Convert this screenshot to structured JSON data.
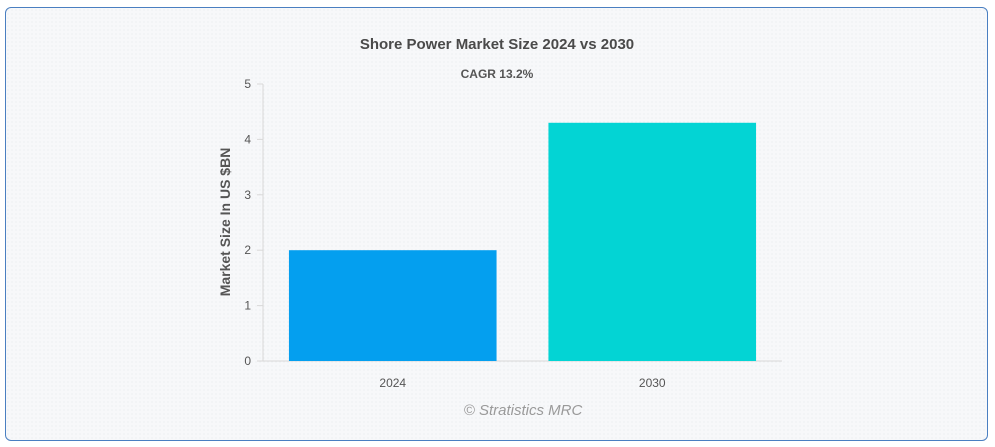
{
  "chart_data": {
    "type": "bar",
    "title": "Shore Power Market Size 2024 vs 2030",
    "subtitle": "CAGR 13.2%",
    "xlabel": "",
    "ylabel": "Market Size In US $BN",
    "categories": [
      "2024",
      "2030"
    ],
    "values": [
      2.0,
      4.3
    ],
    "colors": [
      "#049fef",
      "#03d4d4"
    ],
    "ylim": [
      0,
      5
    ],
    "yticks": [
      0,
      1,
      2,
      3,
      4,
      5
    ],
    "grid": false,
    "legend": "none"
  },
  "credit": "© Stratistics MRC"
}
